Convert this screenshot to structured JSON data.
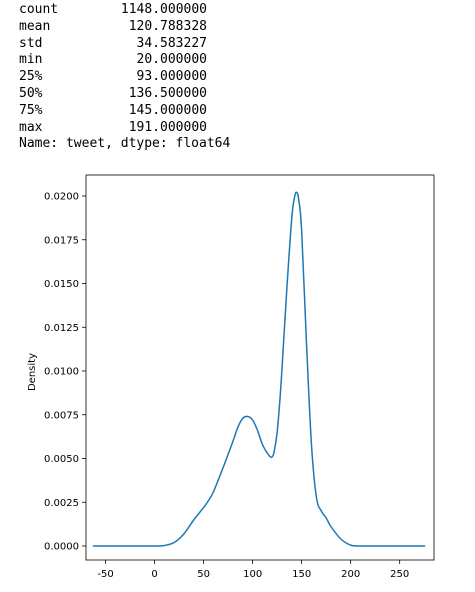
{
  "describe_output": {
    "rows": [
      {
        "key": "count",
        "value": "1148.000000"
      },
      {
        "key": "mean",
        "value": "120.788328"
      },
      {
        "key": "std",
        "value": "34.583227"
      },
      {
        "key": "min",
        "value": "20.000000"
      },
      {
        "key": "25%",
        "value": "93.000000"
      },
      {
        "key": "50%",
        "value": "136.500000"
      },
      {
        "key": "75%",
        "value": "145.000000"
      },
      {
        "key": "max",
        "value": "191.000000"
      }
    ],
    "footer": "Name: tweet, dtype: float64"
  },
  "chart_data": {
    "type": "line",
    "title": "",
    "xlabel": "",
    "ylabel": "Density",
    "xlim": [
      -70,
      285
    ],
    "ylim": [
      -0.0008,
      0.0212
    ],
    "x_ticks": [
      -50,
      0,
      50,
      100,
      150,
      200,
      250
    ],
    "y_ticks": [
      0.0,
      0.0025,
      0.005,
      0.0075,
      0.01,
      0.0125,
      0.015,
      0.0175,
      0.02
    ],
    "y_tick_labels": [
      "0.0000",
      "0.0025",
      "0.0050",
      "0.0075",
      "0.0100",
      "0.0125",
      "0.0150",
      "0.0175",
      "0.0200"
    ],
    "line_color": "#1f77b4",
    "series": [
      {
        "x": [
          -63,
          -40,
          -20,
          0,
          10,
          20,
          30,
          40,
          50,
          55,
          60,
          70,
          80,
          85,
          90,
          95,
          100,
          105,
          110,
          115,
          118,
          120,
          122,
          125,
          128,
          130,
          135,
          140,
          143,
          145,
          147,
          150,
          155,
          160,
          165,
          170,
          175,
          180,
          190,
          200,
          210,
          220,
          240,
          260,
          276
        ],
        "y": [
          0.0,
          0.0,
          0.0,
          0.0,
          3e-05,
          0.0002,
          0.0007,
          0.0015,
          0.0022,
          0.0026,
          0.0031,
          0.0045,
          0.006,
          0.0068,
          0.0073,
          0.0074,
          0.0072,
          0.0066,
          0.0058,
          0.0053,
          0.0051,
          0.0051,
          0.0054,
          0.0065,
          0.0085,
          0.0102,
          0.0148,
          0.0188,
          0.02,
          0.0202,
          0.0198,
          0.018,
          0.0115,
          0.0058,
          0.0028,
          0.002,
          0.0016,
          0.0011,
          0.0004,
          5e-05,
          0.0,
          0.0,
          0.0,
          0.0,
          0.0
        ]
      }
    ]
  }
}
